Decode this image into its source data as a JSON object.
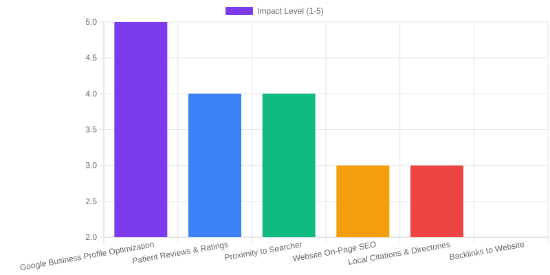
{
  "legend": {
    "label": "Impact Level (1-5)",
    "color": "#7c3aed"
  },
  "chart_data": {
    "type": "bar",
    "title": "",
    "xlabel": "",
    "ylabel": "",
    "categories": [
      "Google Business Profile Optimization",
      "Patient Reviews & Ratings",
      "Proximity to Searcher",
      "Website On-Page SEO",
      "Local Citations & Directories",
      "Backlinks to Website"
    ],
    "series": [
      {
        "name": "Impact Level (1-5)",
        "values": [
          5,
          4,
          4,
          3,
          3,
          2
        ],
        "colors": [
          "#7c3aed",
          "#3b82f6",
          "#10b981",
          "#f59e0b",
          "#ef4444",
          "#6366f1"
        ]
      }
    ],
    "ylim": [
      2.0,
      5.0
    ],
    "yticks": [
      "5.0",
      "4.5",
      "4.0",
      "3.5",
      "3.0",
      "2.5",
      "2.0"
    ],
    "grid": true,
    "legend_position": "top"
  }
}
